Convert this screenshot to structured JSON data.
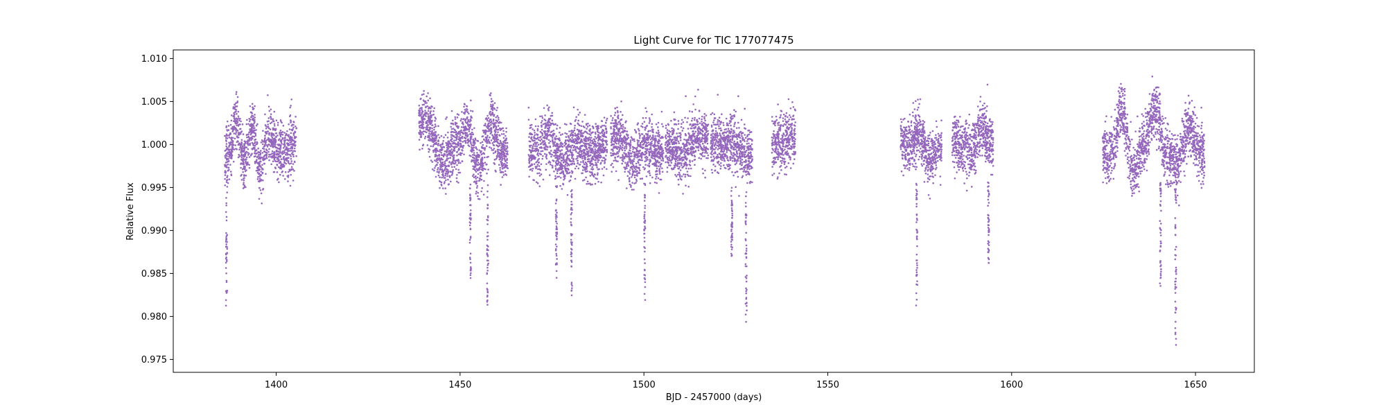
{
  "chart_data": {
    "type": "scatter",
    "title": "Light Curve for TIC 177077475",
    "xlabel": "BJD - 2457000 (days)",
    "ylabel": "Relative Flux",
    "xlim": [
      1372,
      1666
    ],
    "ylim": [
      0.9735,
      1.011
    ],
    "xticks": [
      1400,
      1450,
      1500,
      1550,
      1600,
      1650
    ],
    "yticks": [
      0.975,
      0.98,
      0.985,
      0.99,
      0.995,
      1.0,
      1.005,
      1.01
    ],
    "ytick_labels": [
      "0.975",
      "0.980",
      "0.985",
      "0.990",
      "0.995",
      "1.000",
      "1.005",
      "1.010"
    ],
    "grid": false,
    "legend": "none",
    "color": "#9467bd",
    "series": [
      {
        "segments": [
          {
            "x_start": 1386.0,
            "x_end": 1405.5
          },
          {
            "x_start": 1438.8,
            "x_end": 1463.0
          },
          {
            "x_start": 1468.6,
            "x_end": 1490.0
          },
          {
            "x_start": 1491.0,
            "x_end": 1505.3
          },
          {
            "x_start": 1505.8,
            "x_end": 1517.5
          },
          {
            "x_start": 1518.2,
            "x_end": 1529.5
          },
          {
            "x_start": 1534.8,
            "x_end": 1541.2
          },
          {
            "x_start": 1569.8,
            "x_end": 1581.0
          },
          {
            "x_start": 1583.8,
            "x_end": 1595.0
          },
          {
            "x_start": 1624.8,
            "x_end": 1652.5
          }
        ],
        "variability_centers": [
          {
            "x": 1387.5,
            "y": 0.999
          },
          {
            "x": 1389.0,
            "y": 1.003
          },
          {
            "x": 1391.3,
            "y": 0.998
          },
          {
            "x": 1393.5,
            "y": 1.002
          },
          {
            "x": 1395.5,
            "y": 0.997
          },
          {
            "x": 1398.0,
            "y": 1.001
          },
          {
            "x": 1401.0,
            "y": 0.999
          },
          {
            "x": 1404.0,
            "y": 1.0
          },
          {
            "x": 1441.0,
            "y": 1.003
          },
          {
            "x": 1445.0,
            "y": 0.998
          },
          {
            "x": 1449.0,
            "y": 1.0
          },
          {
            "x": 1452.0,
            "y": 1.002
          },
          {
            "x": 1455.0,
            "y": 0.997
          },
          {
            "x": 1458.5,
            "y": 1.002
          },
          {
            "x": 1462.0,
            "y": 0.999
          },
          {
            "x": 1470.0,
            "y": 0.999
          },
          {
            "x": 1474.0,
            "y": 1.001
          },
          {
            "x": 1478.0,
            "y": 0.998
          },
          {
            "x": 1482.0,
            "y": 1.0
          },
          {
            "x": 1486.0,
            "y": 0.999
          },
          {
            "x": 1489.5,
            "y": 1.0
          },
          {
            "x": 1493.0,
            "y": 1.001
          },
          {
            "x": 1497.0,
            "y": 0.998
          },
          {
            "x": 1500.0,
            "y": 1.0
          },
          {
            "x": 1503.5,
            "y": 0.999
          },
          {
            "x": 1507.0,
            "y": 1.0
          },
          {
            "x": 1510.5,
            "y": 0.999
          },
          {
            "x": 1514.5,
            "y": 1.001
          },
          {
            "x": 1520.0,
            "y": 1.0
          },
          {
            "x": 1524.0,
            "y": 1.0
          },
          {
            "x": 1528.0,
            "y": 0.999
          },
          {
            "x": 1537.0,
            "y": 1.0
          },
          {
            "x": 1540.5,
            "y": 1.001
          },
          {
            "x": 1572.0,
            "y": 1.0
          },
          {
            "x": 1575.0,
            "y": 1.001
          },
          {
            "x": 1578.0,
            "y": 0.998
          },
          {
            "x": 1580.5,
            "y": 1.0
          },
          {
            "x": 1586.0,
            "y": 1.0
          },
          {
            "x": 1589.0,
            "y": 0.999
          },
          {
            "x": 1592.0,
            "y": 1.002
          },
          {
            "x": 1594.5,
            "y": 1.0
          },
          {
            "x": 1627.0,
            "y": 0.999
          },
          {
            "x": 1630.0,
            "y": 1.004
          },
          {
            "x": 1633.0,
            "y": 0.997
          },
          {
            "x": 1636.0,
            "y": 1.0
          },
          {
            "x": 1639.0,
            "y": 1.004
          },
          {
            "x": 1642.0,
            "y": 0.999
          },
          {
            "x": 1645.0,
            "y": 0.998
          },
          {
            "x": 1648.0,
            "y": 1.002
          },
          {
            "x": 1651.5,
            "y": 0.999
          }
        ],
        "transits": [
          {
            "x": 1386.5,
            "min_flux": 0.9815
          },
          {
            "x": 1452.8,
            "min_flux": 0.9845
          },
          {
            "x": 1457.5,
            "min_flux": 0.981
          },
          {
            "x": 1476.2,
            "min_flux": 0.9852
          },
          {
            "x": 1480.3,
            "min_flux": 0.982
          },
          {
            "x": 1500.2,
            "min_flux": 0.9822
          },
          {
            "x": 1523.9,
            "min_flux": 0.9867
          },
          {
            "x": 1527.8,
            "min_flux": 0.9795
          },
          {
            "x": 1574.2,
            "min_flux": 0.981
          },
          {
            "x": 1593.7,
            "min_flux": 0.986
          },
          {
            "x": 1640.5,
            "min_flux": 0.9836
          },
          {
            "x": 1644.6,
            "min_flux": 0.9762
          }
        ]
      }
    ]
  }
}
